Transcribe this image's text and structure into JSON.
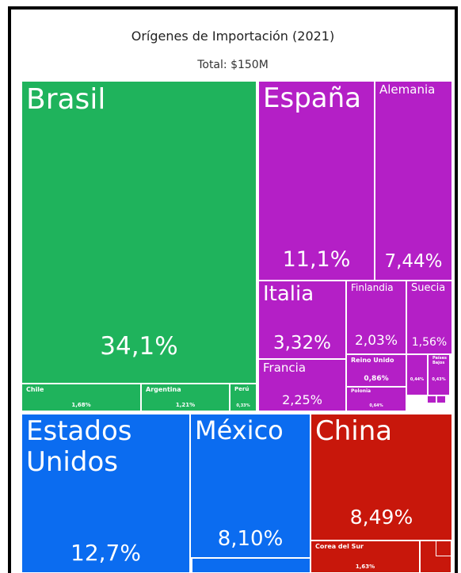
{
  "chart_data": {
    "type": "treemap",
    "title": "Orígenes de Importación (2021)",
    "subtitle": "Total: $150M",
    "items": [
      {
        "name": "Brasil",
        "value": 34.1,
        "value_label": "34,1%",
        "color": "#1fb35c"
      },
      {
        "name": "Chile",
        "value": 1.68,
        "value_label": "1,68%",
        "color": "#1fb35c"
      },
      {
        "name": "Argentina",
        "value": 1.21,
        "value_label": "1,21%",
        "color": "#1fb35c"
      },
      {
        "name": "Perú",
        "value": 0.33,
        "value_label": "0,33%",
        "color": "#1fb35c"
      },
      {
        "name": "España",
        "value": 11.1,
        "value_label": "11,1%",
        "color": "#b41fc6"
      },
      {
        "name": "Alemania",
        "value": 7.44,
        "value_label": "7,44%",
        "color": "#b41fc6"
      },
      {
        "name": "Italia",
        "value": 3.32,
        "value_label": "3,32%",
        "color": "#b41fc6"
      },
      {
        "name": "Francia",
        "value": 2.25,
        "value_label": "2,25%",
        "color": "#b41fc6"
      },
      {
        "name": "Finlandia",
        "value": 2.03,
        "value_label": "2,03%",
        "color": "#b41fc6"
      },
      {
        "name": "Suecia",
        "value": 1.56,
        "value_label": "1,56%",
        "color": "#b41fc6"
      },
      {
        "name": "Reino Unido",
        "value": 0.86,
        "value_label": "0,86%",
        "color": "#b41fc6"
      },
      {
        "name": "Polonia",
        "value": 0.64,
        "value_label": "0,64%",
        "color": "#b41fc6"
      },
      {
        "name": null,
        "value": 0.44,
        "value_label": "0,44%",
        "color": "#b41fc6"
      },
      {
        "name": "Países Bajos",
        "value": 0.43,
        "value_label": "0,43%",
        "color": "#b41fc6"
      },
      {
        "name": "Estados Unidos",
        "value": 12.7,
        "value_label": "12,7%",
        "color": "#0b6cf0"
      },
      {
        "name": "México",
        "value": 8.1,
        "value_label": "8,10%",
        "color": "#0b6cf0"
      },
      {
        "name": "China",
        "value": 8.49,
        "value_label": "8,49%",
        "color": "#c8170b"
      },
      {
        "name": "Corea del Sur",
        "value": 1.63,
        "value_label": "1,63%",
        "color": "#c8170b"
      }
    ]
  }
}
